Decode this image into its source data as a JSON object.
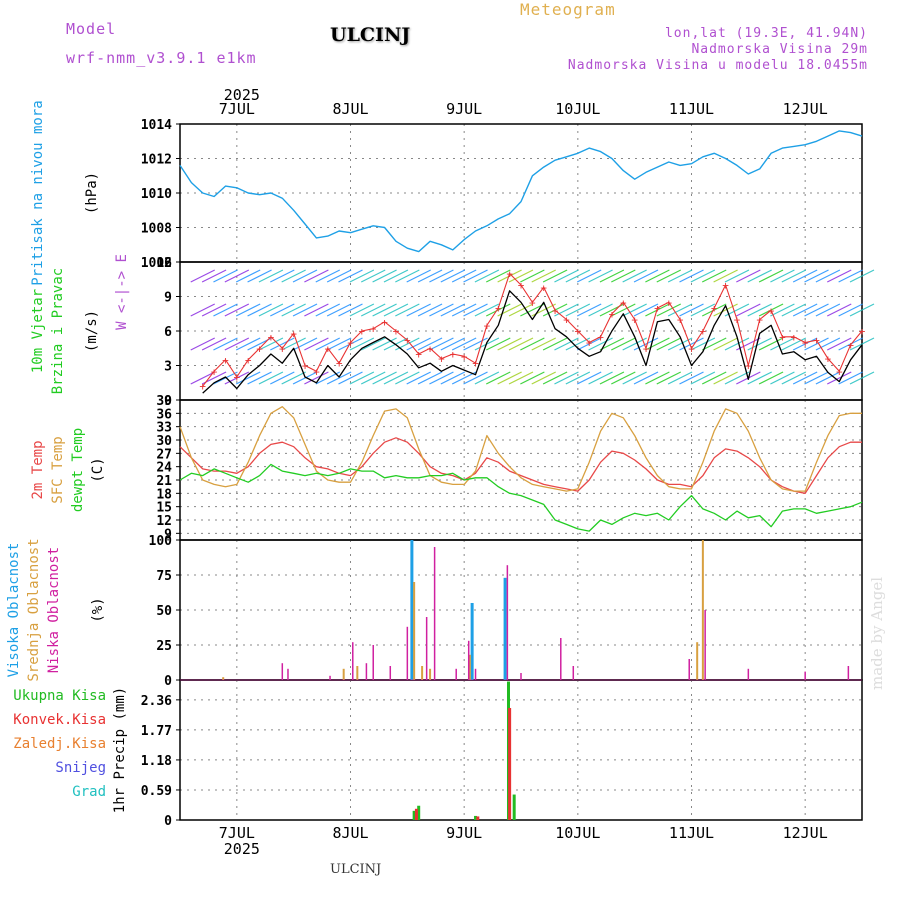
{
  "header": {
    "model_label": "Model",
    "model_name": "wrf-nmm_v3.9.1 e1km",
    "title": "Meteogram",
    "station": "ULCINJ",
    "coords": "lon,lat (19.3E, 41.94N)",
    "elevation": "Nadmorska Visina 29m",
    "model_elevation": "Nadmorska Visina u modelu 18.0455m",
    "year_top": "2025",
    "year_bottom": "2025",
    "footer_station": "ULCINJ",
    "watermark": "made by Angel"
  },
  "colors": {
    "pressure": "#1ea0e6",
    "wind_speed": "#000000",
    "gust": "#e83232",
    "temp2m": "#e84848",
    "sfc_temp": "#d8a040",
    "dewpoint": "#22cc22",
    "high_cloud": "#1ea0e6",
    "mid_cloud": "#d8a040",
    "low_cloud": "#d020a0",
    "total_precip": "#22bb22",
    "conv_precip": "#e83232",
    "snow_precip": "#e88030",
    "snow": "#5050e0",
    "hail": "#20c0c0",
    "header_purple": "#b050d0",
    "header_gold": "#e0b050"
  },
  "chart_data": [
    {
      "id": "pressure",
      "type": "line",
      "title": "",
      "ylabel_lines": [
        "Pritisak na nivou mora",
        "(hPa)"
      ],
      "ylim": [
        1006,
        1014
      ],
      "yticks": [
        1006,
        1008,
        1010,
        1012,
        1014
      ],
      "grid": true,
      "x_categories": [
        "7JUL",
        "8JUL",
        "9JUL",
        "10JUL",
        "11JUL",
        "12JUL"
      ],
      "x_range_days": [
        -0.5,
        5.5
      ],
      "series": [
        {
          "x": [
            -0.5,
            -0.4,
            -0.3,
            -0.2,
            -0.1,
            0.0,
            0.1,
            0.2,
            0.3,
            0.4,
            0.5,
            0.6,
            0.7,
            0.8,
            0.9,
            1.0,
            1.1,
            1.2,
            1.3,
            1.4,
            1.5,
            1.6,
            1.7,
            1.8,
            1.9,
            2.0,
            2.1,
            2.2,
            2.3,
            2.4,
            2.5,
            2.6,
            2.7,
            2.8,
            2.9,
            3.0,
            3.1,
            3.2,
            3.3,
            3.4,
            3.5,
            3.6,
            3.7,
            3.8,
            3.9,
            4.0,
            4.1,
            4.2,
            4.3,
            4.4,
            4.5,
            4.6,
            4.7,
            4.8,
            4.9,
            5.0,
            5.1,
            5.2,
            5.3,
            5.4,
            5.5
          ],
          "values": [
            1011.6,
            1010.6,
            1010.0,
            1009.8,
            1010.4,
            1010.3,
            1010.0,
            1009.9,
            1010.0,
            1009.7,
            1009.0,
            1008.2,
            1007.4,
            1007.5,
            1007.8,
            1007.7,
            1007.9,
            1008.1,
            1008.0,
            1007.2,
            1006.8,
            1006.6,
            1007.2,
            1007.0,
            1006.7,
            1007.3,
            1007.8,
            1008.1,
            1008.5,
            1008.8,
            1009.5,
            1011.0,
            1011.5,
            1011.9,
            1012.1,
            1012.3,
            1012.6,
            1012.4,
            1012.0,
            1011.3,
            1010.8,
            1011.2,
            1011.5,
            1011.8,
            1011.6,
            1011.7,
            1012.1,
            1012.3,
            1012.0,
            1011.6,
            1011.1,
            1011.4,
            1012.3,
            1012.6,
            1012.7,
            1012.8,
            1013.0,
            1013.3,
            1013.6,
            1013.5,
            1013.3
          ]
        }
      ]
    },
    {
      "id": "wind",
      "type": "line",
      "title": "",
      "ylabel_lines": [
        "10m Vjetar",
        "Brzina i Pravac",
        "(m/s)"
      ],
      "legend_compass": "W <-|-> E",
      "ylim": [
        0,
        12
      ],
      "yticks": [
        0,
        3,
        6,
        9,
        12
      ],
      "grid": true,
      "series": [
        {
          "name": "speed",
          "x": [
            -0.3,
            -0.2,
            -0.1,
            0.0,
            0.1,
            0.2,
            0.3,
            0.4,
            0.5,
            0.6,
            0.7,
            0.8,
            0.9,
            1.0,
            1.1,
            1.2,
            1.3,
            1.4,
            1.5,
            1.6,
            1.7,
            1.8,
            1.9,
            2.0,
            2.1,
            2.2,
            2.3,
            2.4,
            2.5,
            2.6,
            2.7,
            2.8,
            2.9,
            3.0,
            3.1,
            3.2,
            3.3,
            3.4,
            3.5,
            3.6,
            3.7,
            3.8,
            3.9,
            4.0,
            4.1,
            4.2,
            4.3,
            4.4,
            4.5,
            4.6,
            4.7,
            4.8,
            4.9,
            5.0,
            5.1,
            5.2,
            5.3,
            5.4,
            5.5
          ],
          "values": [
            0.6,
            1.5,
            2.0,
            1.0,
            2.2,
            3.0,
            4.0,
            3.2,
            4.5,
            2.0,
            1.5,
            3.0,
            2.0,
            3.5,
            4.5,
            5.0,
            5.5,
            4.8,
            4.0,
            2.8,
            3.2,
            2.5,
            3.0,
            2.6,
            2.2,
            5.0,
            6.5,
            9.5,
            8.5,
            7.0,
            8.5,
            6.2,
            5.5,
            4.5,
            3.8,
            4.2,
            6.0,
            7.5,
            5.5,
            3.0,
            6.8,
            7.0,
            5.5,
            3.0,
            4.2,
            6.5,
            8.2,
            5.5,
            1.8,
            5.8,
            6.5,
            4.0,
            4.2,
            3.5,
            3.8,
            2.4,
            1.6,
            3.5,
            4.8
          ]
        },
        {
          "name": "gust",
          "x": [
            -0.3,
            -0.2,
            -0.1,
            0.0,
            0.1,
            0.2,
            0.3,
            0.4,
            0.5,
            0.6,
            0.7,
            0.8,
            0.9,
            1.0,
            1.1,
            1.2,
            1.3,
            1.4,
            1.5,
            1.6,
            1.7,
            1.8,
            1.9,
            2.0,
            2.1,
            2.2,
            2.3,
            2.4,
            2.5,
            2.6,
            2.7,
            2.8,
            2.9,
            3.0,
            3.1,
            3.2,
            3.3,
            3.4,
            3.5,
            3.6,
            3.7,
            3.8,
            3.9,
            4.0,
            4.1,
            4.2,
            4.3,
            4.4,
            4.5,
            4.6,
            4.7,
            4.8,
            4.9,
            5.0,
            5.1,
            5.2,
            5.3,
            5.4,
            5.5
          ],
          "values": [
            1.2,
            2.5,
            3.5,
            2.0,
            3.5,
            4.5,
            5.5,
            4.5,
            5.8,
            3.0,
            2.5,
            4.5,
            3.2,
            5.0,
            6.0,
            6.2,
            6.8,
            6.0,
            5.2,
            4.0,
            4.5,
            3.6,
            4.0,
            3.8,
            3.2,
            6.5,
            8.0,
            11.0,
            10.0,
            8.5,
            9.8,
            7.8,
            7.0,
            6.0,
            5.0,
            5.5,
            7.5,
            8.5,
            7.0,
            4.5,
            8.0,
            8.5,
            7.0,
            4.5,
            6.0,
            8.0,
            10.0,
            7.0,
            3.0,
            7.0,
            7.8,
            5.5,
            5.5,
            5.0,
            5.2,
            3.6,
            2.5,
            4.8,
            6.0
          ]
        }
      ]
    },
    {
      "id": "temperature",
      "type": "line",
      "title": "",
      "ylabel_lines": [
        "2m Temp",
        "SFC Temp",
        "dewpt Temp",
        "(C)"
      ],
      "ylim": [
        7.5,
        39
      ],
      "yticks": [
        9,
        12,
        15,
        18,
        21,
        24,
        27,
        30,
        33,
        36,
        39
      ],
      "grid": true,
      "series": [
        {
          "name": "2m Temp",
          "x": [
            -0.5,
            -0.4,
            -0.3,
            -0.2,
            -0.1,
            0.0,
            0.1,
            0.2,
            0.3,
            0.4,
            0.5,
            0.6,
            0.7,
            0.8,
            0.9,
            1.0,
            1.1,
            1.2,
            1.3,
            1.4,
            1.5,
            1.6,
            1.7,
            1.8,
            1.9,
            2.0,
            2.1,
            2.2,
            2.3,
            2.4,
            2.5,
            2.6,
            2.7,
            2.8,
            2.9,
            3.0,
            3.1,
            3.2,
            3.3,
            3.4,
            3.5,
            3.6,
            3.7,
            3.8,
            3.9,
            4.0,
            4.1,
            4.2,
            4.3,
            4.4,
            4.5,
            4.6,
            4.7,
            4.8,
            4.9,
            5.0,
            5.1,
            5.2,
            5.3,
            5.4,
            5.5
          ],
          "values": [
            28.5,
            26.0,
            23.5,
            23.0,
            23.0,
            22.5,
            24.0,
            27.0,
            29.0,
            29.5,
            28.5,
            26.0,
            24.0,
            23.5,
            22.5,
            22.0,
            24.0,
            27.0,
            29.5,
            30.5,
            29.5,
            27.0,
            24.0,
            22.5,
            22.0,
            21.0,
            22.5,
            26.0,
            25.0,
            23.0,
            22.0,
            21.0,
            20.0,
            19.5,
            19.0,
            18.5,
            21.0,
            25.0,
            27.5,
            27.0,
            25.5,
            23.5,
            21.0,
            20.0,
            20.0,
            19.5,
            22.0,
            26.0,
            28.0,
            27.5,
            26.0,
            24.0,
            21.0,
            19.5,
            18.5,
            18.0,
            22.0,
            26.0,
            28.5,
            29.5,
            29.5
          ]
        },
        {
          "name": "SFC Temp",
          "x": [
            -0.5,
            -0.4,
            -0.3,
            -0.2,
            -0.1,
            0.0,
            0.1,
            0.2,
            0.3,
            0.4,
            0.5,
            0.6,
            0.7,
            0.8,
            0.9,
            1.0,
            1.1,
            1.2,
            1.3,
            1.4,
            1.5,
            1.6,
            1.7,
            1.8,
            1.9,
            2.0,
            2.1,
            2.2,
            2.3,
            2.4,
            2.5,
            2.6,
            2.7,
            2.8,
            2.9,
            3.0,
            3.1,
            3.2,
            3.3,
            3.4,
            3.5,
            3.6,
            3.7,
            3.8,
            3.9,
            4.0,
            4.1,
            4.2,
            4.3,
            4.4,
            4.5,
            4.6,
            4.7,
            4.8,
            4.9,
            5.0,
            5.1,
            5.2,
            5.3,
            5.4,
            5.5
          ],
          "values": [
            33.0,
            26.0,
            21.0,
            20.0,
            19.5,
            20.0,
            25.0,
            31.0,
            36.0,
            37.5,
            35.0,
            29.0,
            23.0,
            21.0,
            20.5,
            20.5,
            25.0,
            31.0,
            36.5,
            37.0,
            35.0,
            28.0,
            22.0,
            20.5,
            20.0,
            20.0,
            23.0,
            31.0,
            27.0,
            24.0,
            21.5,
            20.0,
            19.5,
            19.0,
            18.5,
            19.0,
            25.0,
            32.0,
            36.0,
            35.0,
            31.0,
            26.0,
            22.0,
            19.5,
            19.0,
            19.0,
            25.0,
            32.0,
            37.0,
            36.0,
            32.0,
            26.0,
            21.0,
            19.0,
            18.5,
            18.5,
            25.0,
            31.0,
            35.5,
            36.0,
            36.0
          ]
        },
        {
          "name": "dewpt Temp",
          "x": [
            -0.5,
            -0.4,
            -0.3,
            -0.2,
            -0.1,
            0.0,
            0.1,
            0.2,
            0.3,
            0.4,
            0.5,
            0.6,
            0.7,
            0.8,
            0.9,
            1.0,
            1.1,
            1.2,
            1.3,
            1.4,
            1.5,
            1.6,
            1.7,
            1.8,
            1.9,
            2.0,
            2.1,
            2.2,
            2.3,
            2.4,
            2.5,
            2.6,
            2.7,
            2.8,
            2.9,
            3.0,
            3.1,
            3.2,
            3.3,
            3.4,
            3.5,
            3.6,
            3.7,
            3.8,
            3.9,
            4.0,
            4.1,
            4.2,
            4.3,
            4.4,
            4.5,
            4.6,
            4.7,
            4.8,
            4.9,
            5.0,
            5.1,
            5.2,
            5.3,
            5.4,
            5.5
          ],
          "values": [
            21.0,
            22.5,
            22.0,
            23.5,
            22.5,
            21.5,
            20.5,
            22.0,
            24.5,
            23.0,
            22.5,
            22.0,
            22.5,
            22.0,
            22.5,
            23.5,
            23.0,
            23.0,
            21.5,
            22.0,
            21.5,
            21.5,
            22.0,
            22.0,
            22.5,
            21.0,
            21.5,
            21.5,
            19.5,
            18.0,
            17.5,
            16.5,
            15.5,
            12.0,
            11.0,
            10.0,
            9.5,
            12.0,
            11.0,
            12.5,
            13.5,
            13.0,
            13.5,
            12.0,
            15.0,
            17.5,
            14.5,
            13.5,
            12.0,
            14.0,
            12.5,
            13.0,
            10.5,
            14.0,
            14.5,
            14.5,
            13.5,
            14.0,
            14.5,
            15.0,
            16.0
          ]
        }
      ]
    },
    {
      "id": "clouds",
      "type": "bar",
      "title": "",
      "ylabel_lines": [
        "Visoka Oblacnost",
        "Srednja Oblacnost",
        "Niska Oblacnost",
        "(%)"
      ],
      "ylim": [
        0,
        100
      ],
      "yticks": [
        0,
        25,
        50,
        75,
        100
      ],
      "grid": true,
      "series": [
        {
          "name": "Visoka Oblacnost",
          "x": [
            1.54,
            2.07,
            2.36
          ],
          "values": [
            100,
            55,
            73
          ]
        },
        {
          "name": "Srednja Oblacnost",
          "x": [
            -0.12,
            0.94,
            1.06,
            1.56,
            1.63,
            1.7,
            2.05,
            4.05,
            4.1
          ],
          "values": [
            2,
            8,
            10,
            70,
            10,
            8,
            18,
            27,
            100
          ]
        },
        {
          "name": "Niska Oblacnost",
          "x": [
            0.4,
            0.45,
            0.82,
            1.02,
            1.14,
            1.2,
            1.35,
            1.5,
            1.67,
            1.74,
            1.93,
            2.04,
            2.1,
            2.38,
            2.5,
            2.85,
            2.96,
            3.98,
            4.12,
            4.5,
            5.0,
            5.38
          ],
          "values": [
            12,
            8,
            3,
            27,
            12,
            25,
            10,
            38,
            45,
            95,
            8,
            28,
            8,
            82,
            5,
            30,
            10,
            15,
            50,
            8,
            6,
            10
          ]
        }
      ]
    },
    {
      "id": "precip",
      "type": "bar",
      "title": "",
      "ylabel_lines": [
        "1hr Precip (mm)"
      ],
      "legend": [
        "Ukupna Kisa",
        "Konvek.Kisa",
        "Zaledj.Kisa",
        "Snijeg",
        "Grad"
      ],
      "ylim": [
        0,
        2.75
      ],
      "yticks": [
        0,
        0.59,
        1.18,
        1.77,
        2.36
      ],
      "grid": true,
      "series": [
        {
          "name": "Ukupna Kisa",
          "x": [
            1.56,
            1.6,
            2.1,
            2.39,
            2.44
          ],
          "values": [
            0.18,
            0.28,
            0.08,
            2.72,
            0.5
          ]
        },
        {
          "name": "Konvek.Kisa",
          "x": [
            1.58,
            2.12,
            2.4
          ],
          "values": [
            0.22,
            0.07,
            2.2
          ]
        }
      ]
    }
  ]
}
